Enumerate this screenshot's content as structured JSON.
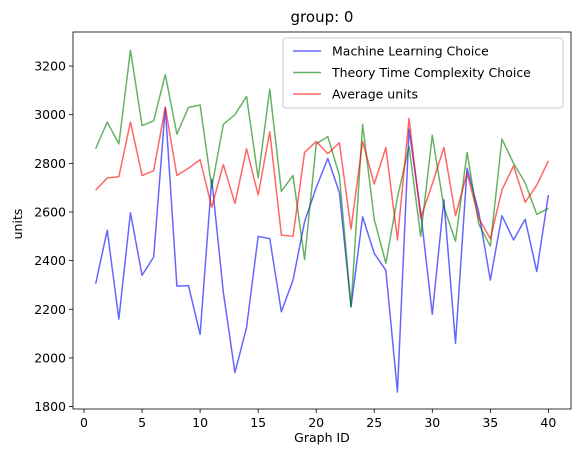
{
  "chart_data": {
    "type": "line",
    "title": "group: 0",
    "xlabel": "Graph ID",
    "ylabel": "units",
    "xlim": [
      -0.95,
      41.95
    ],
    "ylim": [
      1790,
      3340
    ],
    "xticks": [
      0,
      5,
      10,
      15,
      20,
      25,
      30,
      35,
      40
    ],
    "yticks": [
      1800,
      2000,
      2200,
      2400,
      2600,
      2800,
      3000,
      3200
    ],
    "grid": false,
    "legend_position": "top-right",
    "x": [
      1,
      2,
      3,
      4,
      5,
      6,
      7,
      8,
      9,
      10,
      11,
      12,
      13,
      14,
      15,
      16,
      17,
      18,
      19,
      20,
      21,
      22,
      23,
      24,
      25,
      26,
      27,
      28,
      29,
      30,
      31,
      32,
      33,
      34,
      35,
      36,
      37,
      38,
      39,
      40
    ],
    "series": [
      {
        "name": "Machine Learning Choice",
        "color": "#0000ff",
        "values": [
          2305,
          2525,
          2160,
          2597,
          2340,
          2415,
          3030,
          2295,
          2297,
          2097,
          2735,
          2270,
          1940,
          2125,
          2500,
          2490,
          2190,
          2320,
          2560,
          2700,
          2820,
          2680,
          2210,
          2580,
          2430,
          2360,
          1860,
          2940,
          2600,
          2180,
          2650,
          2060,
          2780,
          2600,
          2320,
          2585,
          2485,
          2570,
          2355,
          2670
        ]
      },
      {
        "name": "Theory Time Complexity Choice",
        "color": "#008000",
        "values": [
          2860,
          2970,
          2880,
          3265,
          2955,
          2975,
          3165,
          2920,
          3030,
          3040,
          2700,
          2960,
          3000,
          3075,
          2740,
          3105,
          2685,
          2750,
          2405,
          2880,
          2910,
          2750,
          2210,
          2960,
          2570,
          2390,
          2660,
          2870,
          2500,
          2915,
          2620,
          2480,
          2845,
          2550,
          2460,
          2900,
          2800,
          2720,
          2590,
          2615
        ]
      },
      {
        "name": "Average units",
        "color": "#ff0000",
        "values": [
          2690,
          2740,
          2745,
          2970,
          2750,
          2770,
          3030,
          2750,
          2780,
          2815,
          2620,
          2795,
          2635,
          2860,
          2670,
          2930,
          2505,
          2500,
          2845,
          2890,
          2840,
          2885,
          2530,
          2890,
          2715,
          2865,
          2485,
          2985,
          2575,
          2715,
          2865,
          2585,
          2760,
          2575,
          2490,
          2690,
          2790,
          2640,
          2710,
          2810
        ]
      }
    ]
  }
}
